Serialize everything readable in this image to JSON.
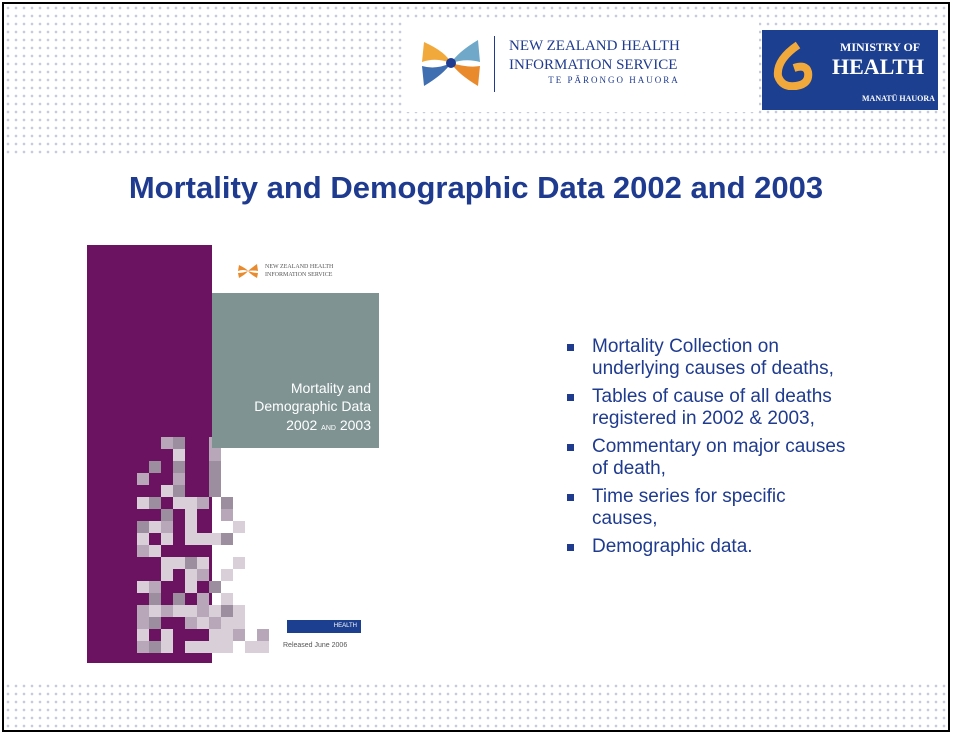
{
  "header": {
    "nzhis": {
      "line1": "NEW ZEALAND HEALTH",
      "line2": "INFORMATION SERVICE",
      "line3": "TE PĀRONGO HAUORA"
    },
    "ministry": {
      "line1": "MINISTRY OF",
      "line2": "HEALTH",
      "line3": "MANATŪ HAUORA"
    }
  },
  "title": "Mortality and Demographic Data 2002 and 2003",
  "cover": {
    "org1": "NEW ZEALAND HEALTH",
    "org2": "INFORMATION SERVICE",
    "title1": "Mortality and",
    "title2": "Demographic Data",
    "year1": "2002",
    "and": "AND",
    "year2": "2003",
    "ministry": "HEALTH",
    "released": "Released June 2006"
  },
  "bullets": [
    [
      "Mortality Collection on",
      "underlying causes of deaths,"
    ],
    [
      "Tables of cause of all deaths",
      "registered in 2002 & 2003,"
    ],
    [
      "Commentary on major causes",
      "of death,"
    ],
    [
      "Time series for specific",
      "causes,"
    ],
    [
      "Demographic data."
    ]
  ]
}
